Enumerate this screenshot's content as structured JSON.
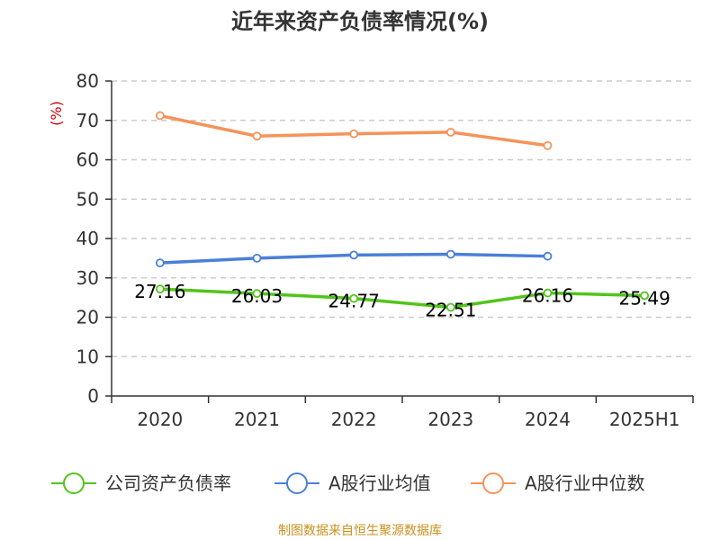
{
  "chart_data": {
    "type": "line",
    "title": "近年来资产负债率情况(%)",
    "ylabel": "(%)",
    "categories": [
      "2020",
      "2021",
      "2022",
      "2023",
      "2024",
      "2025H1"
    ],
    "ylim": [
      0,
      80
    ],
    "yticks": [
      "0",
      "10",
      "20",
      "30",
      "40",
      "50",
      "60",
      "70",
      "80"
    ],
    "grid": true,
    "legend_position": "bottom",
    "series": [
      {
        "name": "公司资产负债率",
        "color": "#52c41a",
        "values": [
          27.16,
          26.03,
          24.77,
          22.51,
          26.16,
          25.49
        ],
        "labels": [
          "27.16",
          "26.03",
          "24.77",
          "22.51",
          "26.16",
          "25.49"
        ]
      },
      {
        "name": "A股行业均值",
        "color": "#4a7fd8",
        "values": [
          33.8,
          35.0,
          35.8,
          36.0,
          35.5,
          null
        ],
        "labels": []
      },
      {
        "name": "A股行业中位数",
        "color": "#f5935a",
        "values": [
          71.2,
          66.0,
          66.6,
          67.0,
          63.6,
          null
        ],
        "labels": []
      }
    ],
    "source": "制图数据来自恒生聚源数据库",
    "colors": {
      "axis": "#333333",
      "grid": "#cccccc",
      "unit": "#cc0000",
      "source": "#c8921e"
    }
  }
}
